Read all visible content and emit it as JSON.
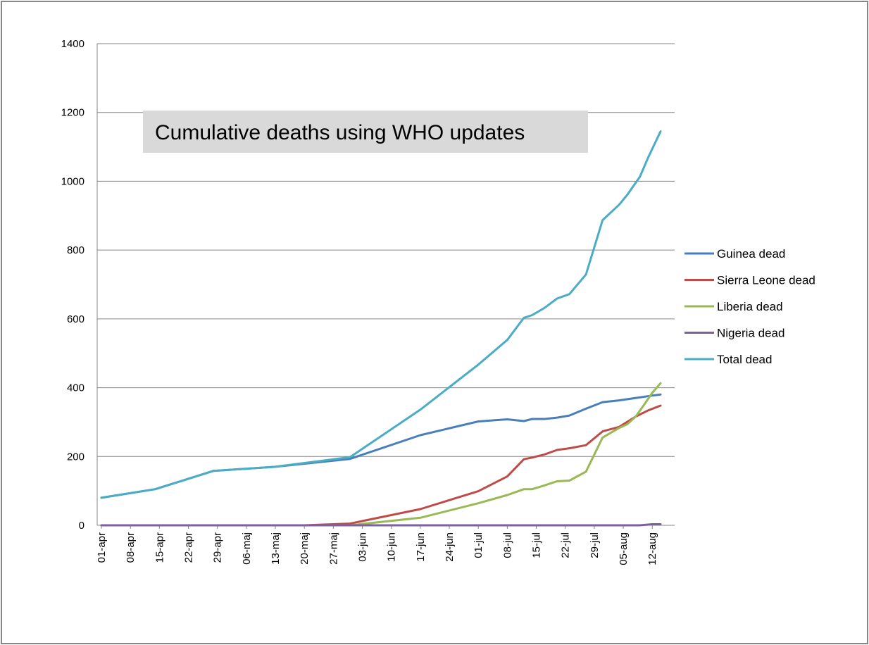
{
  "chart_data": {
    "type": "line",
    "title": "Cumulative deaths using WHO updates",
    "xlabel": "",
    "ylabel": "",
    "ylim": [
      0,
      1400
    ],
    "yticks": [
      0,
      200,
      400,
      600,
      800,
      1000,
      1200,
      1400
    ],
    "grid": true,
    "legend_position": "right",
    "x_range": [
      "2014-04-01",
      "2014-08-14"
    ],
    "xtick_dates": [
      "2014-04-01",
      "2014-04-08",
      "2014-04-15",
      "2014-04-22",
      "2014-04-29",
      "2014-05-06",
      "2014-05-13",
      "2014-05-20",
      "2014-05-27",
      "2014-06-03",
      "2014-06-10",
      "2014-06-17",
      "2014-06-24",
      "2014-07-01",
      "2014-07-08",
      "2014-07-15",
      "2014-07-22",
      "2014-07-29",
      "2014-08-05",
      "2014-08-12"
    ],
    "xtick_labels": [
      "01-apr",
      "08-apr",
      "15-apr",
      "22-apr",
      "29-apr",
      "06-maj",
      "13-maj",
      "20-maj",
      "27-maj",
      "03-jun",
      "10-jun",
      "17-jun",
      "24-jun",
      "01-jul",
      "08-jul",
      "15-jul",
      "22-jul",
      "29-jul",
      "05-aug",
      "12-aug"
    ],
    "series": [
      {
        "name": "Guinea dead",
        "color": "#4a7ebb",
        "points": [
          [
            "2014-04-01",
            80
          ],
          [
            "2014-04-14",
            105
          ],
          [
            "2014-04-28",
            158
          ],
          [
            "2014-05-13",
            170
          ],
          [
            "2014-05-31",
            193
          ],
          [
            "2014-06-17",
            262
          ],
          [
            "2014-07-01",
            302
          ],
          [
            "2014-07-08",
            308
          ],
          [
            "2014-07-12",
            303
          ],
          [
            "2014-07-14",
            309
          ],
          [
            "2014-07-17",
            309
          ],
          [
            "2014-07-20",
            313
          ],
          [
            "2014-07-23",
            319
          ],
          [
            "2014-07-27",
            339
          ],
          [
            "2014-07-31",
            358
          ],
          [
            "2014-08-04",
            363
          ],
          [
            "2014-08-12",
            377
          ],
          [
            "2014-08-14",
            380
          ]
        ]
      },
      {
        "name": "Sierra Leone dead",
        "color": "#be4b48",
        "points": [
          [
            "2014-04-01",
            0
          ],
          [
            "2014-05-20",
            0
          ],
          [
            "2014-05-31",
            5
          ],
          [
            "2014-06-17",
            47
          ],
          [
            "2014-07-01",
            99
          ],
          [
            "2014-07-08",
            142
          ],
          [
            "2014-07-12",
            192
          ],
          [
            "2014-07-14",
            197
          ],
          [
            "2014-07-17",
            206
          ],
          [
            "2014-07-20",
            219
          ],
          [
            "2014-07-23",
            224
          ],
          [
            "2014-07-27",
            233
          ],
          [
            "2014-07-31",
            273
          ],
          [
            "2014-08-04",
            286
          ],
          [
            "2014-08-08",
            316
          ],
          [
            "2014-08-11",
            334
          ],
          [
            "2014-08-14",
            348
          ]
        ]
      },
      {
        "name": "Liberia dead",
        "color": "#98b954",
        "points": [
          [
            "2014-04-01",
            0
          ],
          [
            "2014-05-31",
            0
          ],
          [
            "2014-06-17",
            22
          ],
          [
            "2014-07-01",
            64
          ],
          [
            "2014-07-08",
            88
          ],
          [
            "2014-07-12",
            105
          ],
          [
            "2014-07-14",
            105
          ],
          [
            "2014-07-17",
            116
          ],
          [
            "2014-07-20",
            128
          ],
          [
            "2014-07-23",
            130
          ],
          [
            "2014-07-27",
            156
          ],
          [
            "2014-07-31",
            255
          ],
          [
            "2014-08-04",
            283
          ],
          [
            "2014-08-06",
            294
          ],
          [
            "2014-08-08",
            316
          ],
          [
            "2014-08-10",
            350
          ],
          [
            "2014-08-12",
            385
          ],
          [
            "2014-08-14",
            413
          ]
        ]
      },
      {
        "name": "Nigeria dead",
        "color": "#7d60a0",
        "points": [
          [
            "2014-04-01",
            0
          ],
          [
            "2014-08-09",
            0
          ],
          [
            "2014-08-12",
            3
          ],
          [
            "2014-08-14",
            3
          ]
        ]
      },
      {
        "name": "Total dead",
        "color": "#4bacc6",
        "points": [
          [
            "2014-04-01",
            80
          ],
          [
            "2014-04-14",
            105
          ],
          [
            "2014-04-28",
            158
          ],
          [
            "2014-05-13",
            170
          ],
          [
            "2014-05-31",
            198
          ],
          [
            "2014-06-17",
            336
          ],
          [
            "2014-07-01",
            467
          ],
          [
            "2014-07-08",
            539
          ],
          [
            "2014-07-12",
            603
          ],
          [
            "2014-07-14",
            611
          ],
          [
            "2014-07-17",
            632
          ],
          [
            "2014-07-20",
            659
          ],
          [
            "2014-07-23",
            672
          ],
          [
            "2014-07-27",
            729
          ],
          [
            "2014-07-31",
            887
          ],
          [
            "2014-08-04",
            932
          ],
          [
            "2014-08-06",
            961
          ],
          [
            "2014-08-09",
            1013
          ],
          [
            "2014-08-11",
            1069
          ],
          [
            "2014-08-14",
            1145
          ]
        ]
      }
    ]
  }
}
